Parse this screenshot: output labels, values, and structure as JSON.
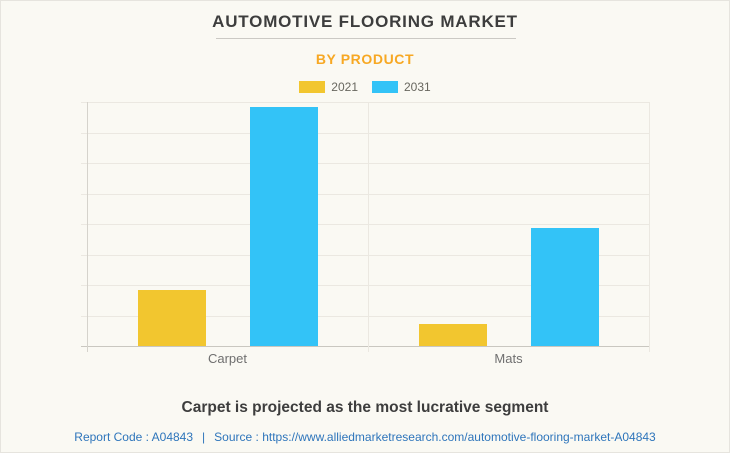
{
  "header": {
    "title": "AUTOMOTIVE FLOORING MARKET",
    "subtitle": "BY PRODUCT"
  },
  "chart_data": {
    "type": "bar",
    "categories": [
      "Carpet",
      "Mats"
    ],
    "series": [
      {
        "name": "2021",
        "color": "#F2C62F",
        "values": [
          23,
          9
        ]
      },
      {
        "name": "2031",
        "color": "#33C3F7",
        "values": [
          98,
          48.5
        ]
      }
    ],
    "title": "AUTOMOTIVE FLOORING MARKET",
    "subtitle": "BY PRODUCT",
    "xlabel": "",
    "ylabel": "",
    "ylim": [
      0,
      100
    ],
    "grid": true,
    "gridline_intervals": 8,
    "y_axis_tick_labels_visible": false,
    "legend_position": "top"
  },
  "footer": {
    "note": "Carpet is projected as the most lucrative segment",
    "report_code": "Report Code : A04843",
    "separator": "|",
    "source_label": "Source :",
    "source_url": "https://www.alliedmarketresearch.com/automotive-flooring-market-A04843"
  },
  "colors": {
    "background": "#FAF9F3",
    "title_text": "#3D3D3D",
    "subtitle_text": "#F7A823",
    "axis_label_text": "#6F6F6F",
    "gridline": "#EBE8E1",
    "link_text": "#2E75BB",
    "series_2021": "#F2C62F",
    "series_2031": "#33C3F7"
  }
}
